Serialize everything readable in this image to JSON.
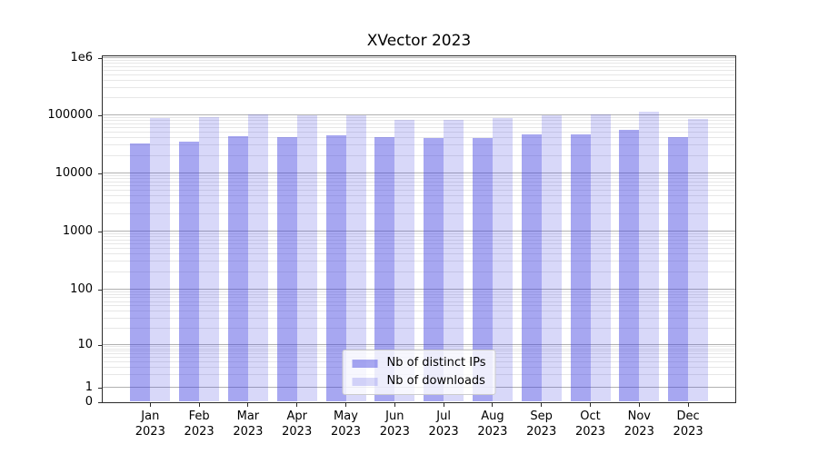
{
  "title": "XVector 2023",
  "y_axis": {
    "tick_labels": [
      "1e6",
      "100000",
      "10000",
      "1000",
      "100",
      "10",
      "1",
      "0"
    ]
  },
  "x_axis": {
    "months": [
      "Jan",
      "Feb",
      "Mar",
      "Apr",
      "May",
      "Jun",
      "Jul",
      "Aug",
      "Sep",
      "Oct",
      "Nov",
      "Dec"
    ],
    "year": "2023"
  },
  "legend": {
    "items": [
      {
        "label": "Nb of distinct IPs"
      },
      {
        "label": "Nb of downloads"
      }
    ]
  },
  "colors": {
    "ips": "rgba(60,60,224,0.45)",
    "downloads": "rgba(60,60,224,0.20)",
    "grid_major": "#b1b1b1",
    "grid_minor": "#e7e7e7",
    "spine": "#2b2b2b",
    "legend_border": "#cccccc",
    "legend_bg": "rgba(255,255,255,0.8)"
  },
  "chart_data": {
    "type": "bar",
    "title": "XVector 2023",
    "categories": [
      "Jan 2023",
      "Feb 2023",
      "Mar 2023",
      "Apr 2023",
      "May 2023",
      "Jun 2023",
      "Jul 2023",
      "Aug 2023",
      "Sep 2023",
      "Oct 2023",
      "Nov 2023",
      "Dec 2023"
    ],
    "series": [
      {
        "name": "Nb of distinct IPs",
        "values": [
          32000,
          35000,
          43000,
          41000,
          44000,
          42000,
          40500,
          40000,
          46000,
          46500,
          54500,
          41500
        ]
      },
      {
        "name": "Nb of downloads",
        "values": [
          87000,
          90000,
          102000,
          97000,
          97500,
          83000,
          83000,
          88000,
          98000,
          101000,
          112000,
          84000
        ]
      }
    ],
    "xlabel": "",
    "ylabel": "",
    "yscale": "log",
    "ylim": [
      0,
      1000000
    ],
    "y_ticks": [
      1000000,
      100000,
      10000,
      1000,
      100,
      10,
      1,
      0
    ],
    "grid": true,
    "legend_position": "lower center"
  }
}
